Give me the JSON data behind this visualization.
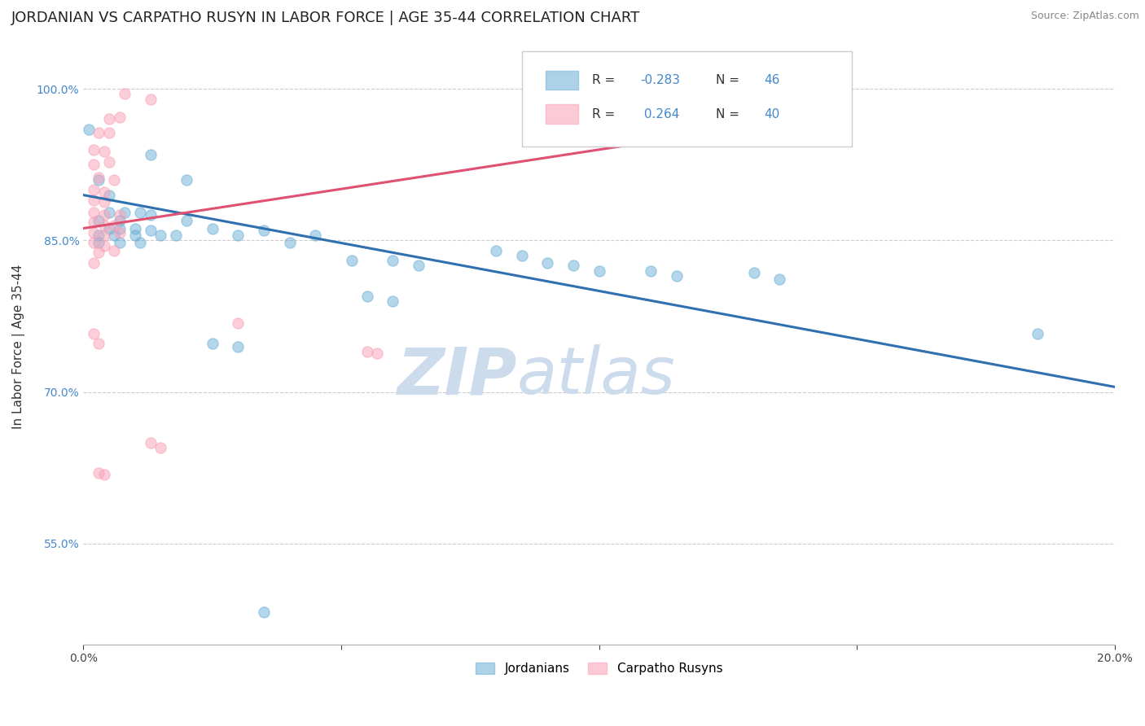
{
  "title": "JORDANIAN VS CARPATHO RUSYN IN LABOR FORCE | AGE 35-44 CORRELATION CHART",
  "source": "Source: ZipAtlas.com",
  "ylabel": "In Labor Force | Age 35-44",
  "xlim": [
    0.0,
    0.2
  ],
  "ylim": [
    0.45,
    1.04
  ],
  "yticks": [
    0.55,
    0.7,
    0.85,
    1.0
  ],
  "ytick_labels": [
    "55.0%",
    "70.0%",
    "85.0%",
    "100.0%"
  ],
  "xticks": [
    0.0,
    0.05,
    0.1,
    0.15,
    0.2
  ],
  "xtick_labels": [
    "0.0%",
    "",
    "",
    "",
    "20.0%"
  ],
  "blue_scatter": [
    [
      0.001,
      0.96
    ],
    [
      0.013,
      0.935
    ],
    [
      0.003,
      0.91
    ],
    [
      0.02,
      0.91
    ],
    [
      0.005,
      0.895
    ],
    [
      0.005,
      0.878
    ],
    [
      0.008,
      0.878
    ],
    [
      0.011,
      0.878
    ],
    [
      0.013,
      0.875
    ],
    [
      0.003,
      0.87
    ],
    [
      0.007,
      0.87
    ],
    [
      0.005,
      0.862
    ],
    [
      0.007,
      0.862
    ],
    [
      0.01,
      0.862
    ],
    [
      0.013,
      0.86
    ],
    [
      0.003,
      0.855
    ],
    [
      0.006,
      0.855
    ],
    [
      0.01,
      0.855
    ],
    [
      0.003,
      0.848
    ],
    [
      0.007,
      0.848
    ],
    [
      0.011,
      0.848
    ],
    [
      0.015,
      0.855
    ],
    [
      0.018,
      0.855
    ],
    [
      0.02,
      0.87
    ],
    [
      0.025,
      0.862
    ],
    [
      0.03,
      0.855
    ],
    [
      0.035,
      0.86
    ],
    [
      0.04,
      0.848
    ],
    [
      0.045,
      0.855
    ],
    [
      0.052,
      0.83
    ],
    [
      0.06,
      0.83
    ],
    [
      0.065,
      0.825
    ],
    [
      0.08,
      0.84
    ],
    [
      0.085,
      0.835
    ],
    [
      0.09,
      0.828
    ],
    [
      0.095,
      0.825
    ],
    [
      0.1,
      0.82
    ],
    [
      0.11,
      0.82
    ],
    [
      0.115,
      0.815
    ],
    [
      0.13,
      0.818
    ],
    [
      0.135,
      0.812
    ],
    [
      0.055,
      0.795
    ],
    [
      0.06,
      0.79
    ],
    [
      0.185,
      0.758
    ],
    [
      0.025,
      0.748
    ],
    [
      0.03,
      0.745
    ],
    [
      0.035,
      0.482
    ]
  ],
  "pink_scatter": [
    [
      0.008,
      0.995
    ],
    [
      0.013,
      0.99
    ],
    [
      0.005,
      0.97
    ],
    [
      0.007,
      0.972
    ],
    [
      0.003,
      0.957
    ],
    [
      0.005,
      0.957
    ],
    [
      0.002,
      0.94
    ],
    [
      0.004,
      0.938
    ],
    [
      0.002,
      0.925
    ],
    [
      0.005,
      0.928
    ],
    [
      0.003,
      0.912
    ],
    [
      0.006,
      0.91
    ],
    [
      0.002,
      0.9
    ],
    [
      0.004,
      0.898
    ],
    [
      0.002,
      0.89
    ],
    [
      0.004,
      0.888
    ],
    [
      0.002,
      0.878
    ],
    [
      0.004,
      0.875
    ],
    [
      0.007,
      0.875
    ],
    [
      0.002,
      0.868
    ],
    [
      0.004,
      0.865
    ],
    [
      0.006,
      0.865
    ],
    [
      0.002,
      0.858
    ],
    [
      0.004,
      0.855
    ],
    [
      0.007,
      0.858
    ],
    [
      0.002,
      0.848
    ],
    [
      0.004,
      0.845
    ],
    [
      0.003,
      0.838
    ],
    [
      0.006,
      0.84
    ],
    [
      0.002,
      0.828
    ],
    [
      0.002,
      0.758
    ],
    [
      0.003,
      0.748
    ],
    [
      0.03,
      0.768
    ],
    [
      0.055,
      0.74
    ],
    [
      0.057,
      0.738
    ],
    [
      0.013,
      0.65
    ],
    [
      0.015,
      0.645
    ],
    [
      0.003,
      0.62
    ],
    [
      0.004,
      0.618
    ]
  ],
  "blue_line_x": [
    0.0,
    0.2
  ],
  "blue_line_y": [
    0.895,
    0.705
  ],
  "pink_line_x": [
    0.0,
    0.145
  ],
  "pink_line_y": [
    0.862,
    0.975
  ],
  "blue_color": "#6baed6",
  "pink_color": "#fa9fb5",
  "blue_line_color": "#3070b0",
  "pink_line_color": "#e05070",
  "watermark_color": "#ccdcec",
  "title_fontsize": 13,
  "axis_label_fontsize": 11,
  "tick_fontsize": 10,
  "source_fontsize": 9
}
